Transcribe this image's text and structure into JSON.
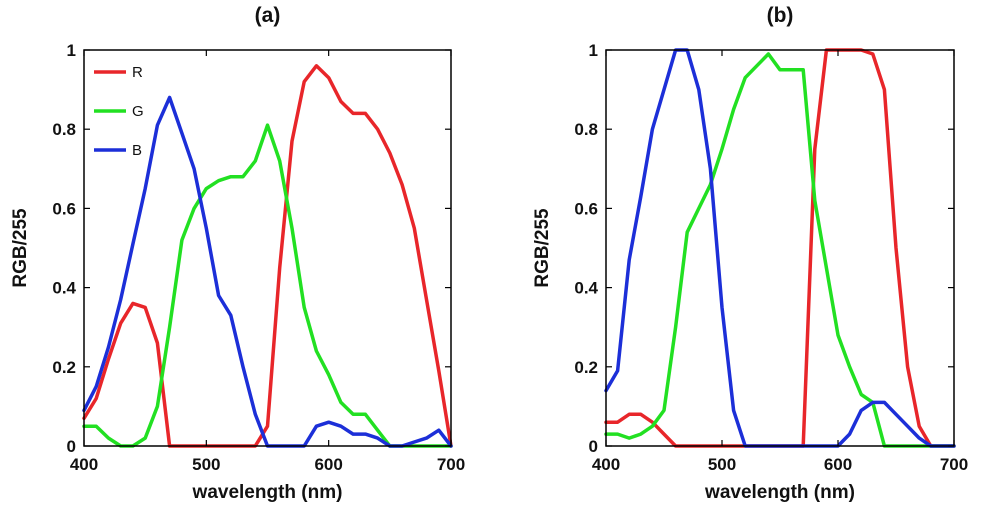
{
  "chart_data": [
    {
      "type": "line",
      "title": "(a)",
      "xlabel": "wavelength (nm)",
      "ylabel": "RGB/255",
      "xlim": [
        400,
        700
      ],
      "ylim": [
        0,
        1
      ],
      "xticks": [
        400,
        500,
        600,
        700
      ],
      "yticks": [
        0,
        0.2,
        0.4,
        0.6,
        0.8,
        1
      ],
      "legend": {
        "position": "top-left",
        "entries": [
          "R",
          "G",
          "B"
        ]
      },
      "series": [
        {
          "name": "R",
          "color": "#e8262a",
          "x": [
            400,
            410,
            420,
            430,
            440,
            450,
            460,
            470,
            480,
            490,
            500,
            510,
            520,
            530,
            540,
            550,
            560,
            570,
            580,
            590,
            600,
            610,
            620,
            630,
            640,
            650,
            660,
            670,
            680,
            690,
            700
          ],
          "y": [
            0.07,
            0.12,
            0.22,
            0.31,
            0.36,
            0.35,
            0.26,
            0.0,
            0.0,
            0.0,
            0.0,
            0.0,
            0.0,
            0.0,
            0.0,
            0.05,
            0.45,
            0.77,
            0.92,
            0.96,
            0.93,
            0.87,
            0.84,
            0.84,
            0.8,
            0.74,
            0.66,
            0.55,
            0.37,
            0.19,
            0.0
          ]
        },
        {
          "name": "G",
          "color": "#22e022",
          "x": [
            400,
            410,
            420,
            430,
            440,
            450,
            460,
            470,
            480,
            490,
            500,
            510,
            520,
            530,
            540,
            550,
            560,
            570,
            580,
            590,
            600,
            610,
            620,
            630,
            640,
            650,
            660,
            670,
            680,
            690,
            700
          ],
          "y": [
            0.05,
            0.05,
            0.02,
            0.0,
            0.0,
            0.02,
            0.1,
            0.3,
            0.52,
            0.6,
            0.65,
            0.67,
            0.68,
            0.68,
            0.72,
            0.81,
            0.72,
            0.55,
            0.35,
            0.24,
            0.18,
            0.11,
            0.08,
            0.08,
            0.04,
            0.0,
            0.0,
            0.0,
            0.0,
            0.0,
            0.0
          ]
        },
        {
          "name": "B",
          "color": "#1c2fd8",
          "x": [
            400,
            410,
            420,
            430,
            440,
            450,
            460,
            470,
            480,
            490,
            500,
            510,
            520,
            530,
            540,
            550,
            560,
            570,
            580,
            590,
            600,
            610,
            620,
            630,
            640,
            650,
            660,
            670,
            680,
            690,
            700
          ],
          "y": [
            0.09,
            0.15,
            0.25,
            0.37,
            0.51,
            0.65,
            0.81,
            0.88,
            0.79,
            0.7,
            0.55,
            0.38,
            0.33,
            0.2,
            0.08,
            0.0,
            0.0,
            0.0,
            0.0,
            0.05,
            0.06,
            0.05,
            0.03,
            0.03,
            0.02,
            0.0,
            0.0,
            0.01,
            0.02,
            0.04,
            0.0
          ]
        }
      ]
    },
    {
      "type": "line",
      "title": "(b)",
      "xlabel": "wavelength (nm)",
      "ylabel": "RGB/255",
      "xlim": [
        400,
        700
      ],
      "ylim": [
        0,
        1
      ],
      "xticks": [
        400,
        500,
        600,
        700
      ],
      "yticks": [
        0,
        0.2,
        0.4,
        0.6,
        0.8,
        1
      ],
      "series": [
        {
          "name": "R",
          "color": "#e8262a",
          "x": [
            400,
            410,
            420,
            430,
            440,
            450,
            460,
            470,
            480,
            490,
            500,
            510,
            520,
            530,
            540,
            550,
            560,
            570,
            580,
            590,
            600,
            610,
            620,
            630,
            640,
            650,
            660,
            670,
            680,
            690,
            700
          ],
          "y": [
            0.06,
            0.06,
            0.08,
            0.08,
            0.06,
            0.03,
            0.0,
            0.0,
            0.0,
            0.0,
            0.0,
            0.0,
            0.0,
            0.0,
            0.0,
            0.0,
            0.0,
            0.0,
            0.75,
            1.0,
            1.0,
            1.0,
            1.0,
            0.99,
            0.9,
            0.5,
            0.2,
            0.05,
            0.0,
            0.0,
            0.0
          ]
        },
        {
          "name": "G",
          "color": "#22e022",
          "x": [
            400,
            410,
            420,
            430,
            440,
            450,
            460,
            470,
            480,
            490,
            500,
            510,
            520,
            530,
            540,
            550,
            560,
            570,
            580,
            590,
            600,
            610,
            620,
            630,
            640,
            650,
            660,
            670,
            680,
            690,
            700
          ],
          "y": [
            0.03,
            0.03,
            0.02,
            0.03,
            0.05,
            0.09,
            0.3,
            0.54,
            0.6,
            0.66,
            0.75,
            0.85,
            0.93,
            0.96,
            0.99,
            0.95,
            0.95,
            0.95,
            0.62,
            0.45,
            0.28,
            0.2,
            0.13,
            0.11,
            0.0,
            0.0,
            0.0,
            0.0,
            0.0,
            0.0,
            0.0
          ]
        },
        {
          "name": "B",
          "color": "#1c2fd8",
          "x": [
            400,
            410,
            420,
            430,
            440,
            450,
            460,
            470,
            480,
            490,
            500,
            510,
            520,
            530,
            540,
            550,
            560,
            570,
            580,
            590,
            600,
            610,
            620,
            630,
            640,
            650,
            660,
            670,
            680,
            690,
            700
          ],
          "y": [
            0.14,
            0.19,
            0.47,
            0.63,
            0.8,
            0.9,
            1.0,
            1.0,
            0.9,
            0.7,
            0.35,
            0.09,
            0.0,
            0.0,
            0.0,
            0.0,
            0.0,
            0.0,
            0.0,
            0.0,
            0.0,
            0.03,
            0.09,
            0.11,
            0.11,
            0.08,
            0.05,
            0.02,
            0.0,
            0.0,
            0.0
          ]
        }
      ]
    }
  ]
}
